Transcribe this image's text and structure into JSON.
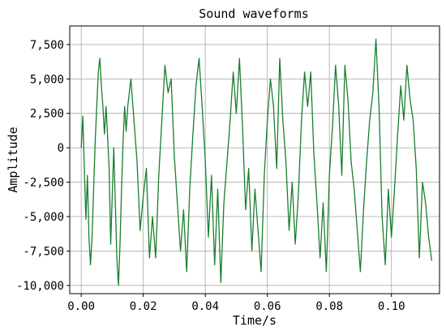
{
  "chart_data": {
    "type": "line",
    "title": "Sound waveforms",
    "xlabel": "Time/s",
    "ylabel": "Amplitude",
    "xlim": [
      -0.0037,
      0.1155
    ],
    "ylim": [
      -10600,
      8850
    ],
    "grid": true,
    "x_ticks": [
      0.0,
      0.02,
      0.04,
      0.06,
      0.08,
      0.1
    ],
    "x_tick_labels": [
      "0.00",
      "0.02",
      "0.04",
      "0.06",
      "0.08",
      "0.10"
    ],
    "y_ticks": [
      -10000,
      -7500,
      -5000,
      -2500,
      0,
      2500,
      5000,
      7500
    ],
    "y_tick_labels": [
      "-10,000",
      "-7,500",
      "-5,000",
      "-2,500",
      "0",
      "2,500",
      "5,000",
      "7,500"
    ],
    "series": [
      {
        "color": "#1a7f2e",
        "x": [
          0.0,
          0.0005,
          0.001,
          0.0015,
          0.002,
          0.0025,
          0.003,
          0.0035,
          0.004,
          0.0045,
          0.005,
          0.0055,
          0.006,
          0.0065,
          0.007,
          0.0075,
          0.008,
          0.0085,
          0.009,
          0.0095,
          0.01,
          0.0105,
          0.011,
          0.0115,
          0.012,
          0.0125,
          0.013,
          0.0135,
          0.014,
          0.0145,
          0.015,
          0.016,
          0.017,
          0.018,
          0.019,
          0.02,
          0.021,
          0.022,
          0.023,
          0.024,
          0.025,
          0.026,
          0.027,
          0.028,
          0.029,
          0.03,
          0.031,
          0.032,
          0.033,
          0.034,
          0.035,
          0.036,
          0.037,
          0.038,
          0.039,
          0.04,
          0.041,
          0.042,
          0.043,
          0.044,
          0.045,
          0.046,
          0.047,
          0.048,
          0.049,
          0.05,
          0.051,
          0.052,
          0.053,
          0.054,
          0.055,
          0.056,
          0.057,
          0.058,
          0.059,
          0.06,
          0.061,
          0.062,
          0.063,
          0.064,
          0.065,
          0.066,
          0.067,
          0.068,
          0.069,
          0.07,
          0.071,
          0.072,
          0.073,
          0.074,
          0.075,
          0.076,
          0.077,
          0.078,
          0.079,
          0.08,
          0.081,
          0.082,
          0.083,
          0.084,
          0.085,
          0.086,
          0.087,
          0.088,
          0.089,
          0.09,
          0.091,
          0.092,
          0.093,
          0.094,
          0.095,
          0.096,
          0.097,
          0.098,
          0.099,
          0.1,
          0.101,
          0.102,
          0.103,
          0.104,
          0.105,
          0.106,
          0.107,
          0.108,
          0.109,
          0.11,
          0.111,
          0.112,
          0.113
        ],
        "y": [
          0,
          2300,
          -1500,
          -5200,
          -2000,
          -6500,
          -8500,
          -6500,
          -3000,
          500,
          3000,
          5500,
          6500,
          4500,
          3000,
          1000,
          3000,
          800,
          -1500,
          -7000,
          -3500,
          0,
          -4000,
          -8000,
          -10000,
          -7000,
          -3000,
          500,
          3000,
          1200,
          3000,
          5000,
          2000,
          -1000,
          -6000,
          -3500,
          -1500,
          -8000,
          -5000,
          -8000,
          -2000,
          2000,
          6000,
          4000,
          5000,
          -500,
          -4000,
          -7500,
          -4500,
          -9000,
          -3000,
          1000,
          4500,
          6500,
          3000,
          -1000,
          -6500,
          -2000,
          -8500,
          -3000,
          -9800,
          -4000,
          -1000,
          2000,
          5500,
          2500,
          6500,
          1500,
          -4500,
          -1500,
          -7500,
          -3000,
          -6000,
          -9000,
          -2000,
          2000,
          5000,
          3000,
          -1500,
          6500,
          2000,
          -1000,
          -6000,
          -2500,
          -7000,
          -3500,
          2000,
          5500,
          3000,
          5500,
          -500,
          -4000,
          -8000,
          -4000,
          -9000,
          -2000,
          1500,
          6000,
          3000,
          -2000,
          6000,
          3500,
          -1000,
          -3000,
          -6000,
          -9000,
          -4500,
          -1000,
          2000,
          4000,
          7900,
          3000,
          -5000,
          -8500,
          -3000,
          -6500,
          -3000,
          1000,
          4500,
          2000,
          6000,
          3500,
          2000,
          -1500,
          -8000,
          -2500,
          -4000,
          -6500,
          -8200
        ]
      }
    ]
  }
}
